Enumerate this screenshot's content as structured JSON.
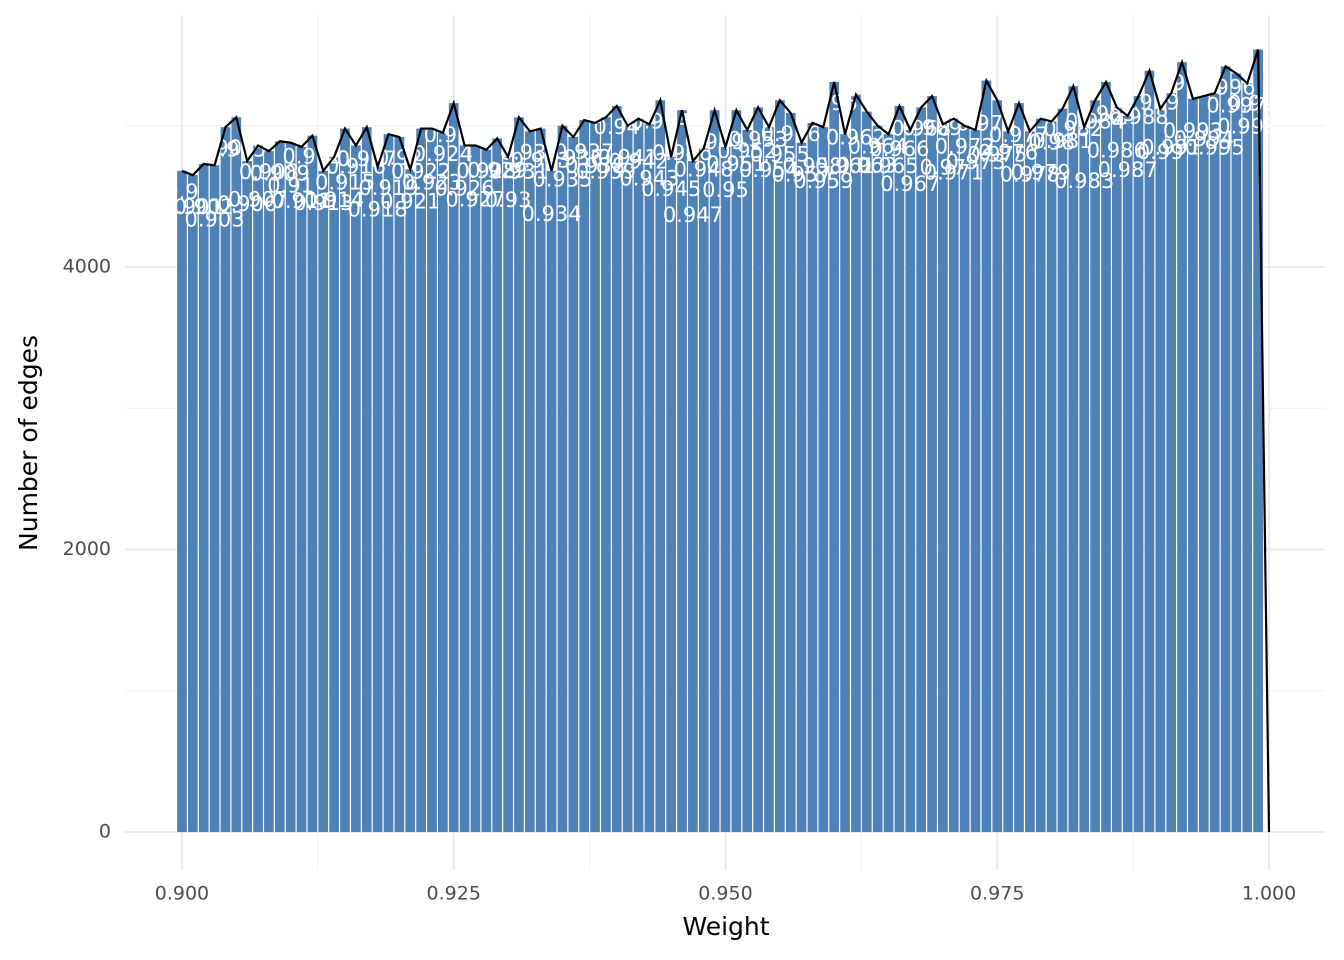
{
  "chart_data": {
    "type": "histogram",
    "x_label": "Weight",
    "y_label": "Number of edges",
    "x": [
      0.9,
      0.901,
      0.902,
      0.903,
      0.904,
      0.905,
      0.906,
      0.907,
      0.908,
      0.909,
      0.91,
      0.911,
      0.912,
      0.913,
      0.914,
      0.915,
      0.916,
      0.917,
      0.918,
      0.919,
      0.92,
      0.921,
      0.922,
      0.923,
      0.924,
      0.925,
      0.926,
      0.927,
      0.928,
      0.929,
      0.93,
      0.931,
      0.932,
      0.933,
      0.934,
      0.935,
      0.936,
      0.937,
      0.938,
      0.939,
      0.94,
      0.941,
      0.942,
      0.943,
      0.944,
      0.945,
      0.946,
      0.947,
      0.948,
      0.949,
      0.95,
      0.951,
      0.952,
      0.953,
      0.954,
      0.955,
      0.956,
      0.957,
      0.958,
      0.959,
      0.96,
      0.961,
      0.962,
      0.963,
      0.964,
      0.965,
      0.966,
      0.967,
      0.968,
      0.969,
      0.97,
      0.971,
      0.972,
      0.973,
      0.974,
      0.975,
      0.976,
      0.977,
      0.978,
      0.979,
      0.98,
      0.981,
      0.982,
      0.983,
      0.984,
      0.985,
      0.986,
      0.987,
      0.988,
      0.989,
      0.99,
      0.991,
      0.992,
      0.993,
      0.994,
      0.995,
      0.996,
      0.997,
      0.998,
      0.999,
      1
    ],
    "values": [
      4680,
      4650,
      4730,
      4720,
      4990,
      5060,
      4750,
      4860,
      4820,
      4890,
      4880,
      4850,
      4930,
      4680,
      4780,
      4980,
      4860,
      4990,
      4710,
      4940,
      4920,
      4690,
      4980,
      4980,
      4950,
      5160,
      4860,
      4860,
      4830,
      4910,
      4780,
      5060,
      4960,
      4980,
      4680,
      5000,
      4920,
      5040,
      5020,
      5060,
      5140,
      5000,
      5050,
      5010,
      5180,
      4780,
      5110,
      4750,
      4840,
      5110,
      4850,
      5110,
      4970,
      5130,
      4990,
      5180,
      5090,
      4880,
      5020,
      4990,
      5310,
      4940,
      5220,
      5100,
      5000,
      4940,
      5140,
      4970,
      5130,
      5210,
      5010,
      5050,
      5000,
      4970,
      5320,
      5180,
      4960,
      5160,
      4960,
      5050,
      5030,
      5120,
      5280,
      4990,
      5180,
      5310,
      5130,
      5070,
      5210,
      5390,
      5120,
      5230,
      5450,
      5190,
      5210,
      5230,
      5420,
      5370,
      5300,
      5540,
      0
    ],
    "bar_width": 0.001,
    "color": "#4e81b5",
    "line_color": "#000000",
    "label_color": "#ffffff",
    "xlim": [
      0.89476,
      1.00515
    ],
    "ylim": [
      -269,
      5784
    ],
    "xticks": [
      {
        "value": 0.9,
        "label": "0.900"
      },
      {
        "value": 0.925,
        "label": "0.925"
      },
      {
        "value": 0.95,
        "label": "0.950"
      },
      {
        "value": 0.975,
        "label": "0.975"
      },
      {
        "value": 1,
        "label": "1.000"
      }
    ],
    "yticks": [
      0,
      2000,
      4000
    ],
    "x_minor_ticks": [
      0.9125,
      0.9375,
      0.9625,
      0.9875
    ],
    "y_minor_ticks": [
      1000,
      3000,
      5000
    ],
    "grid": true
  }
}
